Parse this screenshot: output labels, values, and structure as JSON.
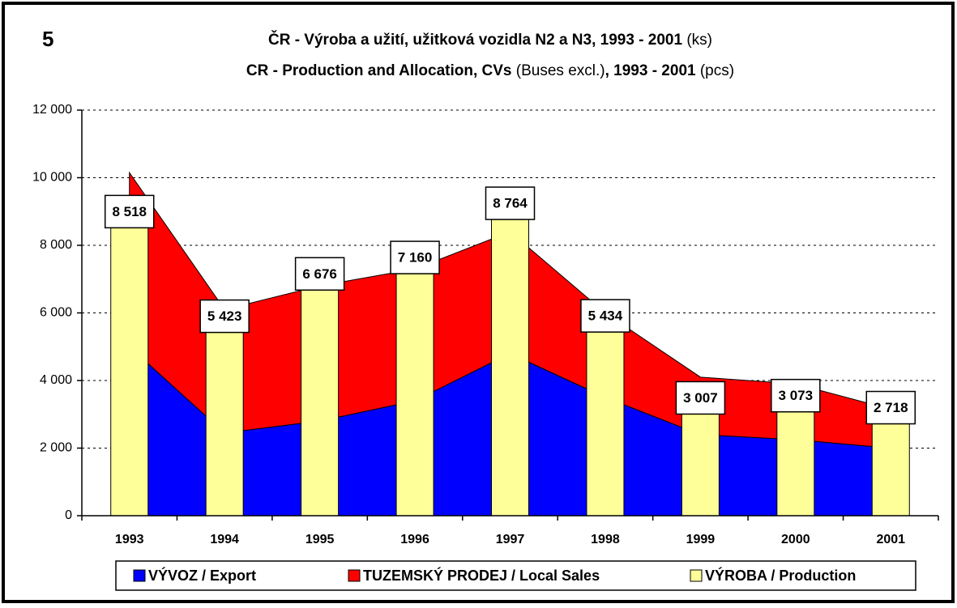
{
  "chart_data": {
    "type": "combo",
    "annotation": "5",
    "title_line1": [
      "ČR - Výroba a užití, užitková vozidla N2 a N3, 1993 - 2001",
      " (ks)"
    ],
    "title_line2": [
      "CR - Production and Allocation, CVs",
      " (Buses excl.)",
      ", 1993 - 2001",
      " (pcs)"
    ],
    "categories": [
      "1993",
      "1994",
      "1995",
      "1996",
      "1997",
      "1998",
      "1999",
      "2000",
      "2001"
    ],
    "series": [
      {
        "name": "VÝVOZ / Export",
        "type": "area",
        "color": "#0000ff",
        "values": [
          5000,
          2450,
          2800,
          3400,
          4800,
          3500,
          2400,
          2250,
          2000
        ]
      },
      {
        "name": "TUZEMSKÝ PRODEJ / Local Sales",
        "type": "area",
        "color": "#ff0000",
        "values": [
          5150,
          3650,
          4000,
          3900,
          3600,
          2500,
          1700,
          1650,
          1150
        ]
      },
      {
        "name": "VÝROBA / Production",
        "type": "bar",
        "color": "#ffff99",
        "values": [
          8518,
          5423,
          6676,
          7160,
          8764,
          5434,
          3007,
          3073,
          2718
        ],
        "value_labels": [
          "8 518",
          "5 423",
          "6 676",
          "7 160",
          "8 764",
          "5 434",
          "3 007",
          "3 073",
          "2 718"
        ]
      }
    ],
    "ylim": [
      0,
      12000
    ],
    "yticks": [
      0,
      {
        "value": 2000,
        "label": "2 000"
      },
      {
        "value": 4000,
        "label": "4 000"
      },
      {
        "value": 6000,
        "label": "6 000"
      },
      {
        "value": 8000,
        "label": "8 000"
      },
      {
        "value": 10000,
        "label": "10 000"
      },
      {
        "value": 12000,
        "label": "12 000"
      }
    ],
    "grid": true,
    "legend": "bottom"
  }
}
